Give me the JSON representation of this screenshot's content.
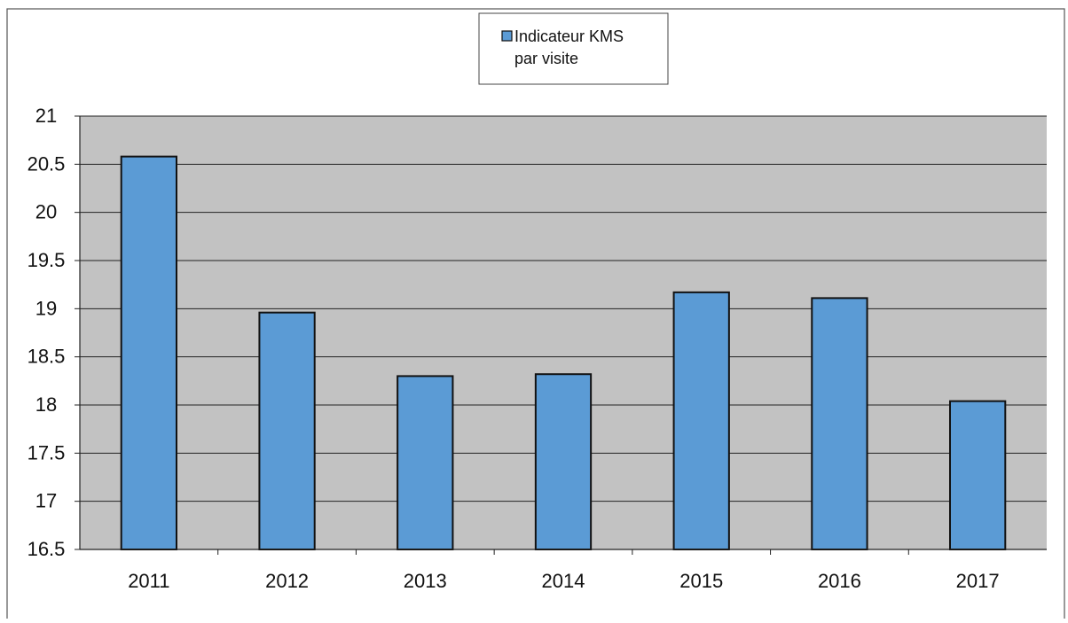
{
  "chart_data": {
    "type": "bar",
    "categories": [
      "2011",
      "2012",
      "2013",
      "2014",
      "2015",
      "2016",
      "2017"
    ],
    "series": [
      {
        "name": "Indicateur KMS par visite",
        "values": [
          20.58,
          18.96,
          18.3,
          18.32,
          19.17,
          19.11,
          18.04
        ]
      }
    ],
    "legend": {
      "line1": "Indicateur KMS",
      "line2": "par visite",
      "position": "top-center"
    },
    "ylim": [
      16.5,
      21
    ],
    "yticks": [
      "21",
      "20.5",
      "20",
      "19.5",
      "19",
      "18.5",
      "18",
      "17.5",
      "17",
      "16.5"
    ],
    "ytick_values": [
      21,
      20.5,
      20,
      19.5,
      19,
      18.5,
      18,
      17.5,
      17,
      16.5
    ],
    "grid": true,
    "title": "",
    "xlabel": "",
    "ylabel": ""
  },
  "colors": {
    "bar": "#5b9bd5",
    "bar_stroke": "#111111",
    "plot_background": "#c2c2c2",
    "grid": "#222222",
    "frame": "#555555"
  }
}
